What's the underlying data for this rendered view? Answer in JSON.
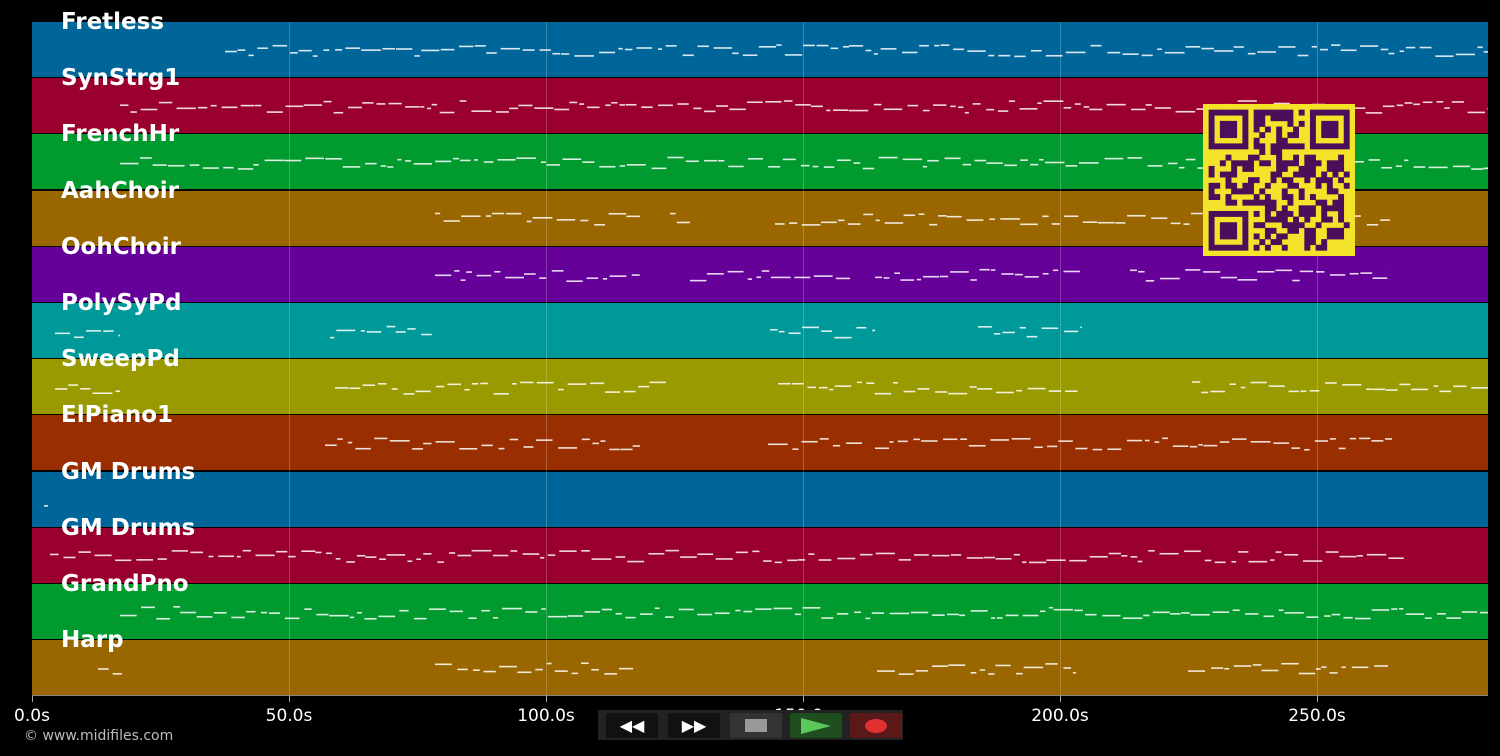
{
  "tracks": [
    {
      "name": "Fretless",
      "color": "#006699"
    },
    {
      "name": "SynStrg1",
      "color": "#99002e"
    },
    {
      "name": "FrenchHr",
      "color": "#009a2e"
    },
    {
      "name": "AahChoir",
      "color": "#996600"
    },
    {
      "name": "OohChoir",
      "color": "#650099"
    },
    {
      "name": "PolySyPd",
      "color": "#009999"
    },
    {
      "name": "SweepPd",
      "color": "#999900"
    },
    {
      "name": "ElPiano1",
      "color": "#992e00"
    },
    {
      "name": "GM Drums",
      "color": "#006699"
    },
    {
      "name": "GM Drums",
      "color": "#99002e"
    },
    {
      "name": "GrandPno",
      "color": "#009a2e"
    },
    {
      "name": "Harp",
      "color": "#996600"
    }
  ],
  "timeline": {
    "ticks": [
      "0.0s",
      "50.0s",
      "100.0s",
      "150.0s",
      "200.0s",
      "250.0s"
    ]
  },
  "transport": {
    "rewind_icon": "rewind-icon",
    "forward_icon": "fast-forward-icon",
    "stop_icon": "stop-icon",
    "play_icon": "play-icon",
    "record_icon": "record-icon"
  },
  "footer": {
    "copyright": "© www.midifiles.com"
  },
  "qr_code": {
    "color_bg": "#f3e32a",
    "color_fg": "#4a0f5a"
  }
}
